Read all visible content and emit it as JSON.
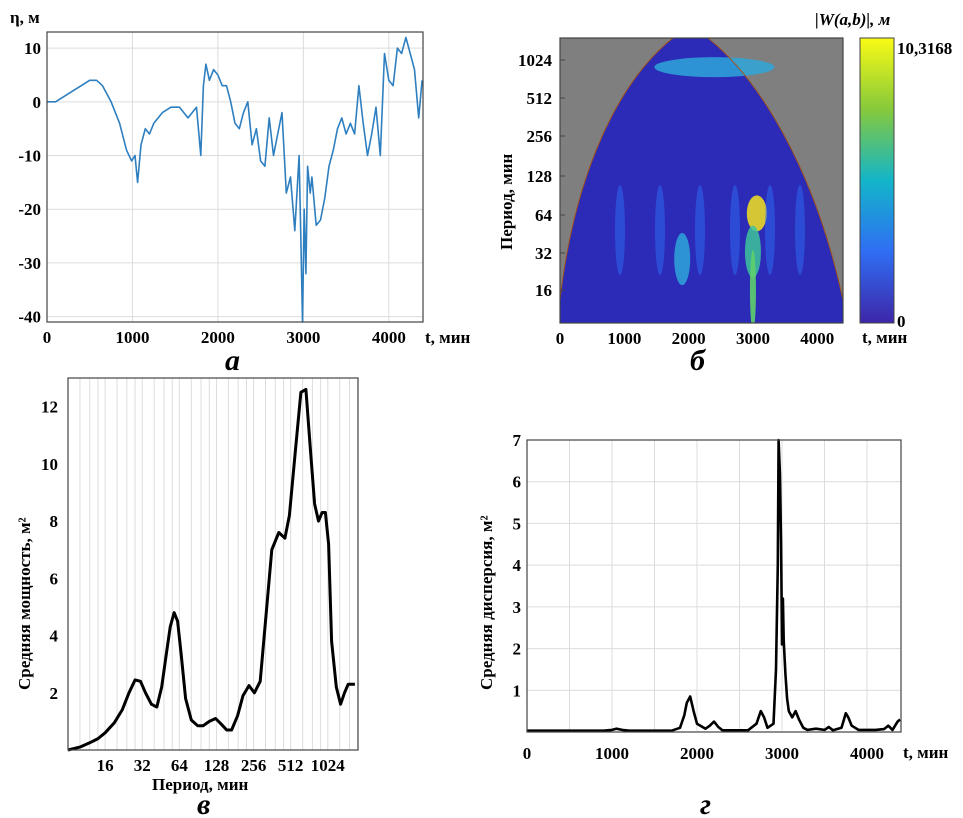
{
  "chart_data": [
    {
      "panel": "a",
      "type": "line",
      "panel_label": "а",
      "ylabel": "η, м",
      "xlabel": "t, мин",
      "xlim": [
        0,
        4400
      ],
      "ylim": [
        -41,
        13
      ],
      "xticks": [
        0,
        1000,
        2000,
        3000,
        4000
      ],
      "yticks": [
        10,
        0,
        -10,
        -20,
        -30,
        -40
      ],
      "grid": true,
      "series": [
        {
          "color": "#2e7fc0",
          "x": [
            0,
            100,
            200,
            300,
            400,
            500,
            580,
            650,
            750,
            850,
            930,
            990,
            1030,
            1060,
            1100,
            1150,
            1200,
            1250,
            1350,
            1450,
            1550,
            1650,
            1750,
            1800,
            1830,
            1860,
            1900,
            1950,
            2000,
            2050,
            2100,
            2150,
            2200,
            2250,
            2300,
            2350,
            2400,
            2450,
            2500,
            2550,
            2600,
            2650,
            2700,
            2750,
            2800,
            2850,
            2900,
            2950,
            2970,
            2990,
            3010,
            3030,
            3050,
            3080,
            3100,
            3150,
            3200,
            3250,
            3300,
            3350,
            3400,
            3450,
            3500,
            3550,
            3600,
            3650,
            3700,
            3750,
            3800,
            3850,
            3900,
            3950,
            4000,
            4050,
            4100,
            4150,
            4200,
            4250,
            4300,
            4350,
            4390
          ],
          "y": [
            0,
            0,
            1,
            2,
            3,
            4,
            4,
            3,
            0,
            -4,
            -9,
            -11,
            -10,
            -15,
            -8,
            -5,
            -6,
            -4,
            -2,
            -1,
            -1,
            -3,
            -1,
            -10,
            3,
            7,
            4,
            6,
            5,
            3,
            3,
            0,
            -4,
            -5,
            -2,
            0,
            -8,
            -5,
            -11,
            -12,
            -3,
            -10,
            -6,
            -2,
            -17,
            -14,
            -24,
            -10,
            -25,
            -41,
            -20,
            -32,
            -12,
            -17,
            -14,
            -23,
            -22,
            -18,
            -12,
            -9,
            -5,
            -3,
            -6,
            -4,
            -6,
            3,
            -4,
            -10,
            -6,
            -1,
            -10,
            9,
            4,
            3,
            10,
            9,
            12,
            9,
            6,
            -3,
            4
          ]
        }
      ]
    },
    {
      "panel": "b",
      "type": "heatmap",
      "panel_label": "б",
      "ylabel": "Период, мин",
      "xlabel": "t, мин",
      "colorbar_title": "|W(a,b)|, м",
      "colorbar_max_label": "10,3168",
      "colorbar_min_label": "0",
      "xlim": [
        0,
        4400
      ],
      "xticks": [
        0,
        1000,
        2000,
        3000,
        4000
      ],
      "yticks": [
        "1024",
        "512",
        "256",
        "128",
        "64",
        "32",
        "16"
      ],
      "y_scale": "log2",
      "hotspots": [
        {
          "t": 3060,
          "period": 64,
          "level": "max"
        },
        {
          "t": 3000,
          "period": 32,
          "level": "high"
        },
        {
          "t": 1900,
          "period": 28,
          "level": "medium"
        },
        {
          "t": 2400,
          "period": 900,
          "level": "medium"
        }
      ]
    },
    {
      "panel": "v",
      "type": "line",
      "panel_label": "в",
      "ylabel": "Средняя мощность, м²",
      "xlabel": "Период, мин",
      "x_scale": "log2",
      "xlim": [
        8,
        1800
      ],
      "ylim": [
        0,
        13
      ],
      "xticks": [
        16,
        32,
        64,
        128,
        256,
        512,
        1024
      ],
      "yticks": [
        2,
        4,
        6,
        8,
        10,
        12
      ],
      "grid": true,
      "series": [
        {
          "color": "#000000",
          "x": [
            8,
            10,
            12,
            14,
            16,
            19,
            22,
            25,
            28,
            31,
            34,
            38,
            42,
            46,
            50,
            54,
            58,
            62,
            66,
            72,
            80,
            90,
            100,
            112,
            126,
            140,
            155,
            170,
            190,
            210,
            235,
            260,
            290,
            320,
            360,
            410,
            460,
            500,
            560,
            620,
            680,
            740,
            800,
            860,
            920,
            980,
            1040,
            1100,
            1200,
            1300,
            1400,
            1500,
            1600,
            1700
          ],
          "y": [
            0,
            0.1,
            0.25,
            0.4,
            0.6,
            0.95,
            1.4,
            2.0,
            2.45,
            2.4,
            2.0,
            1.6,
            1.5,
            2.2,
            3.3,
            4.3,
            4.8,
            4.5,
            3.4,
            1.8,
            1.05,
            0.85,
            0.85,
            1.0,
            1.1,
            0.9,
            0.7,
            0.7,
            1.2,
            1.9,
            2.25,
            2.0,
            2.4,
            4.5,
            7.0,
            7.6,
            7.4,
            8.2,
            10.5,
            12.5,
            12.6,
            10.5,
            8.6,
            8.0,
            8.3,
            8.3,
            7.2,
            3.8,
            2.2,
            1.6,
            2.0,
            2.3,
            2.3,
            2.3
          ]
        }
      ]
    },
    {
      "panel": "g",
      "type": "line",
      "panel_label": "г",
      "ylabel": "Средняя дисперсия, м²",
      "xlabel": "t, мин",
      "xlim": [
        0,
        4400
      ],
      "ylim": [
        0,
        7
      ],
      "xticks": [
        0,
        1000,
        2000,
        3000,
        4000
      ],
      "yticks": [
        1,
        2,
        3,
        4,
        5,
        6,
        7
      ],
      "grid": true,
      "series": [
        {
          "color": "#000000",
          "x": [
            0,
            900,
            1000,
            1050,
            1120,
            1200,
            1700,
            1800,
            1850,
            1880,
            1920,
            1960,
            2000,
            2100,
            2150,
            2200,
            2250,
            2300,
            2600,
            2700,
            2750,
            2790,
            2830,
            2900,
            2930,
            2950,
            2960,
            2975,
            2990,
            3000,
            3010,
            3020,
            3040,
            3060,
            3080,
            3120,
            3160,
            3200,
            3250,
            3300,
            3400,
            3500,
            3550,
            3600,
            3700,
            3750,
            3780,
            3820,
            3900,
            4000,
            4100,
            4200,
            4250,
            4300,
            4360,
            4390
          ],
          "y": [
            0.03,
            0.03,
            0.05,
            0.08,
            0.05,
            0.03,
            0.03,
            0.1,
            0.4,
            0.7,
            0.85,
            0.5,
            0.2,
            0.08,
            0.15,
            0.25,
            0.12,
            0.04,
            0.04,
            0.2,
            0.5,
            0.35,
            0.1,
            0.2,
            1.5,
            4.0,
            7.0,
            6.2,
            4.5,
            2.1,
            3.2,
            2.2,
            1.4,
            0.8,
            0.5,
            0.35,
            0.5,
            0.3,
            0.1,
            0.05,
            0.08,
            0.05,
            0.12,
            0.04,
            0.1,
            0.45,
            0.35,
            0.15,
            0.05,
            0.05,
            0.05,
            0.07,
            0.15,
            0.05,
            0.25,
            0.3
          ]
        }
      ]
    }
  ]
}
